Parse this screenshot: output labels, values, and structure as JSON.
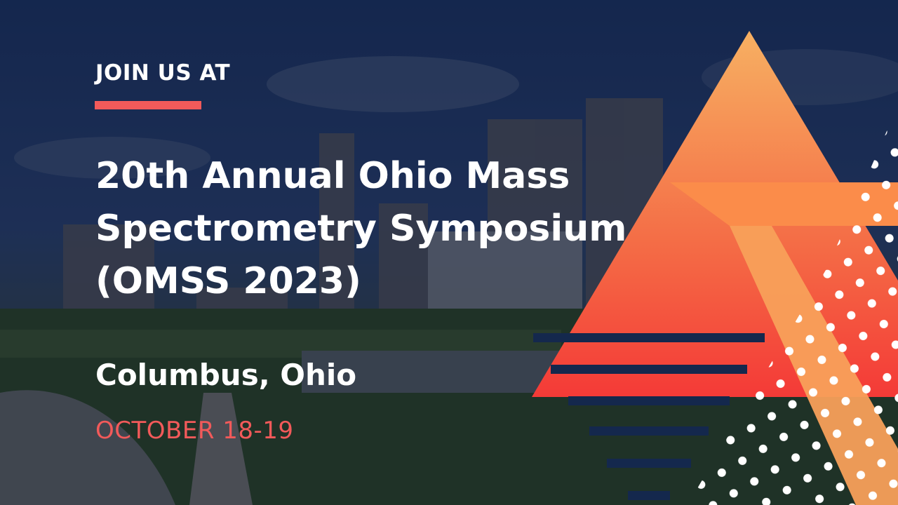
{
  "eyebrow": "JOIN US AT",
  "title_lines": [
    "20th Annual Ohio Mass",
    "Spectrometry Symposium",
    "(OMSS 2023)"
  ],
  "location": "Columbus, Ohio",
  "dates": "OCTOBER 18-19"
}
